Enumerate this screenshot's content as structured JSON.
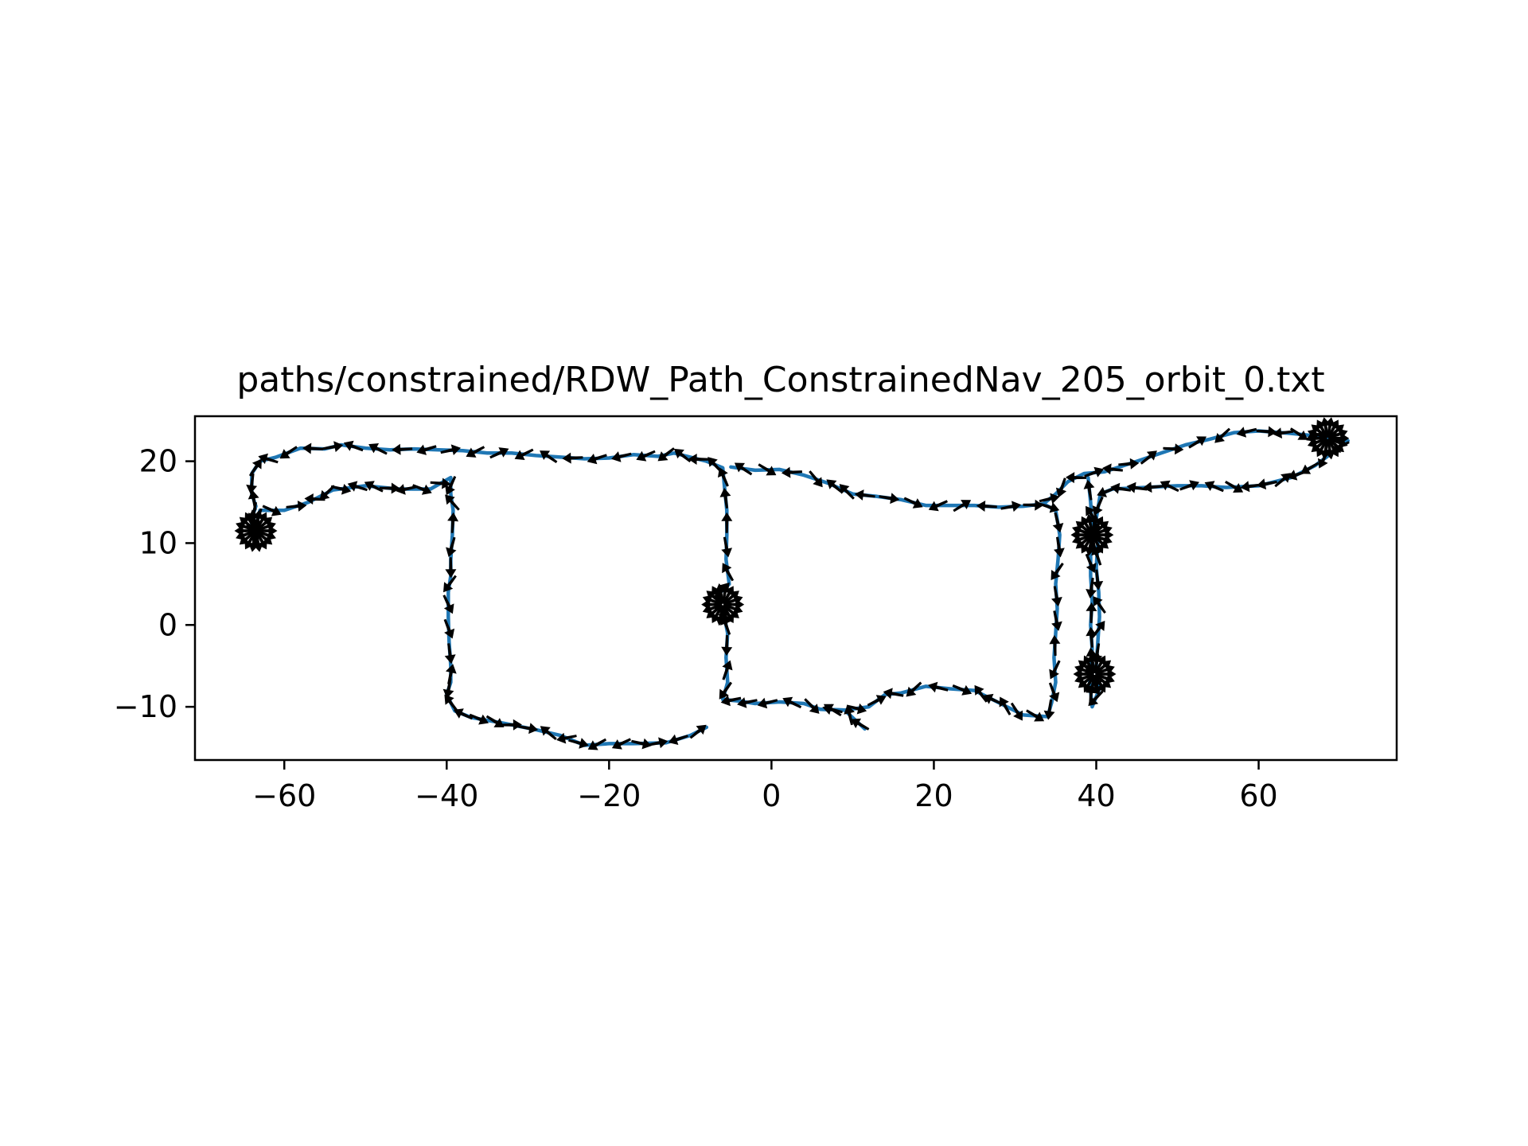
{
  "chart_data": {
    "type": "line",
    "title": "paths/constrained/RDW_Path_ConstrainedNav_205_orbit_0.txt",
    "xlabel": "",
    "ylabel": "",
    "xlim": [
      -71,
      77
    ],
    "ylim": [
      -16.5,
      25.5
    ],
    "xticks": [
      -60,
      -40,
      -20,
      0,
      20,
      40,
      60
    ],
    "yticks": [
      -10,
      0,
      10,
      20
    ],
    "xtick_labels": [
      "−60",
      "−40",
      "−20",
      "0",
      "20",
      "40",
      "60"
    ],
    "ytick_labels": [
      "−10",
      "0",
      "10",
      "20"
    ],
    "grid": false,
    "legend": "none",
    "series": [
      {
        "kind": "path",
        "color": "#1f77b4",
        "points": [
          [
            11.5,
            -12.7
          ],
          [
            9,
            -10.4
          ],
          [
            6,
            -10.3
          ],
          [
            4,
            -9.6
          ],
          [
            1,
            -9.4
          ],
          [
            -2,
            -9.6
          ],
          [
            -4,
            -9.3
          ],
          [
            -6,
            -9.1
          ],
          [
            -5.4,
            -7
          ],
          [
            -5.6,
            -4
          ],
          [
            -5.4,
            -1
          ],
          [
            -5.8,
            1
          ],
          [
            -6.5,
            2.5
          ],
          [
            -6.8,
            3.5
          ],
          [
            -5.2,
            5
          ],
          [
            -5.6,
            8
          ],
          [
            -5.5,
            11
          ],
          [
            -5.5,
            14
          ],
          [
            -5.8,
            17
          ],
          [
            -6,
            19.2
          ],
          [
            -8,
            20
          ],
          [
            -10,
            20.5
          ],
          [
            -12,
            21
          ],
          [
            -14,
            20.6
          ],
          [
            -17,
            20.8
          ],
          [
            -20,
            20.4
          ],
          [
            -23,
            20.3
          ],
          [
            -26,
            20.5
          ],
          [
            -29,
            20.7
          ],
          [
            -32,
            21
          ],
          [
            -35,
            21
          ],
          [
            -38,
            21.3
          ],
          [
            -41,
            21.4
          ],
          [
            -44,
            21.5
          ],
          [
            -47,
            21.4
          ],
          [
            -50,
            21.6
          ],
          [
            -53,
            22
          ],
          [
            -55,
            21.5
          ],
          [
            -58,
            21.6
          ],
          [
            -61,
            20.5
          ],
          [
            -63,
            20
          ],
          [
            -64,
            18.5
          ],
          [
            -64,
            16
          ],
          [
            -63.5,
            14.5
          ],
          [
            -64,
            13
          ],
          [
            -64,
            11.5
          ],
          [
            -63.5,
            10
          ],
          [
            -63.5,
            12
          ],
          [
            -63,
            14
          ],
          [
            -60,
            14
          ],
          [
            -57,
            15
          ],
          [
            -54,
            16.5
          ],
          [
            -50,
            17
          ],
          [
            -46,
            16.6
          ],
          [
            -42,
            16.6
          ],
          [
            -39.5,
            18
          ],
          [
            -39.5,
            16
          ],
          [
            -39.2,
            14
          ],
          [
            -39.3,
            11
          ],
          [
            -39.5,
            8
          ],
          [
            -39.5,
            6
          ],
          [
            -39.8,
            4
          ],
          [
            -39.8,
            1
          ],
          [
            -39.7,
            -2
          ],
          [
            -39.5,
            -5
          ],
          [
            -39.5,
            -7
          ],
          [
            -40,
            -8.5
          ],
          [
            -39,
            -10.5
          ],
          [
            -37,
            -11.3
          ],
          [
            -33,
            -12
          ],
          [
            -29,
            -12.8
          ],
          [
            -26,
            -13.5
          ],
          [
            -23,
            -14.7
          ],
          [
            -20,
            -14.5
          ],
          [
            -17,
            -14.5
          ],
          [
            -13,
            -14.4
          ],
          [
            -10,
            -13.5
          ],
          [
            -8,
            -12.5
          ]
        ]
      },
      {
        "kind": "path",
        "color": "#1f77b4",
        "points": [
          [
            -5,
            19.3
          ],
          [
            -2,
            18.9
          ],
          [
            1,
            19
          ],
          [
            4,
            18.3
          ],
          [
            7,
            17.3
          ],
          [
            10,
            16
          ],
          [
            13,
            15.7
          ],
          [
            16,
            15.3
          ],
          [
            19,
            14.6
          ],
          [
            22,
            14.6
          ],
          [
            25,
            14.6
          ],
          [
            28,
            14.4
          ],
          [
            31,
            14.5
          ],
          [
            33.5,
            14.8
          ],
          [
            35,
            14
          ],
          [
            35.5,
            11
          ],
          [
            35.3,
            8
          ],
          [
            35,
            5
          ],
          [
            35.2,
            2
          ],
          [
            35,
            -1
          ],
          [
            34.8,
            -4
          ],
          [
            35,
            -7
          ],
          [
            34.5,
            -9.5
          ],
          [
            34,
            -11.2
          ],
          [
            31,
            -11
          ],
          [
            28,
            -9.5
          ],
          [
            25,
            -8
          ],
          [
            22,
            -7.8
          ],
          [
            19,
            -7.5
          ],
          [
            16,
            -8.3
          ],
          [
            14,
            -8.5
          ],
          [
            12,
            -10
          ],
          [
            9,
            -10.4
          ],
          [
            6,
            -10.3
          ]
        ]
      },
      {
        "kind": "path",
        "color": "#1f77b4",
        "points": [
          [
            33.5,
            14.8
          ],
          [
            35,
            16
          ],
          [
            36.5,
            17.5
          ],
          [
            38.5,
            18.5
          ],
          [
            41,
            18.7
          ],
          [
            45,
            20
          ],
          [
            48,
            21
          ],
          [
            51,
            22
          ],
          [
            54,
            22.7
          ],
          [
            57,
            23.5
          ],
          [
            60,
            23.7
          ],
          [
            64,
            23.4
          ],
          [
            68,
            23
          ],
          [
            71,
            22.5
          ],
          [
            69,
            21
          ],
          [
            67,
            19.5
          ],
          [
            64,
            18
          ],
          [
            60,
            17
          ],
          [
            56,
            16.8
          ],
          [
            53,
            17
          ],
          [
            50,
            17
          ],
          [
            46,
            16.8
          ],
          [
            42,
            16.6
          ],
          [
            40.5,
            16
          ],
          [
            40,
            13
          ],
          [
            40.2,
            10
          ],
          [
            40,
            7
          ],
          [
            40.3,
            4
          ],
          [
            40.4,
            1
          ],
          [
            40.2,
            -2
          ],
          [
            40,
            -5
          ],
          [
            40.3,
            -8
          ],
          [
            39.5,
            -10
          ],
          [
            39.2,
            -7
          ],
          [
            39.5,
            -3
          ],
          [
            39.3,
            0
          ],
          [
            39.5,
            3
          ],
          [
            39.3,
            6
          ],
          [
            39.3,
            9
          ],
          [
            39.5,
            12
          ],
          [
            39.3,
            15
          ],
          [
            39,
            18
          ]
        ]
      }
    ]
  }
}
